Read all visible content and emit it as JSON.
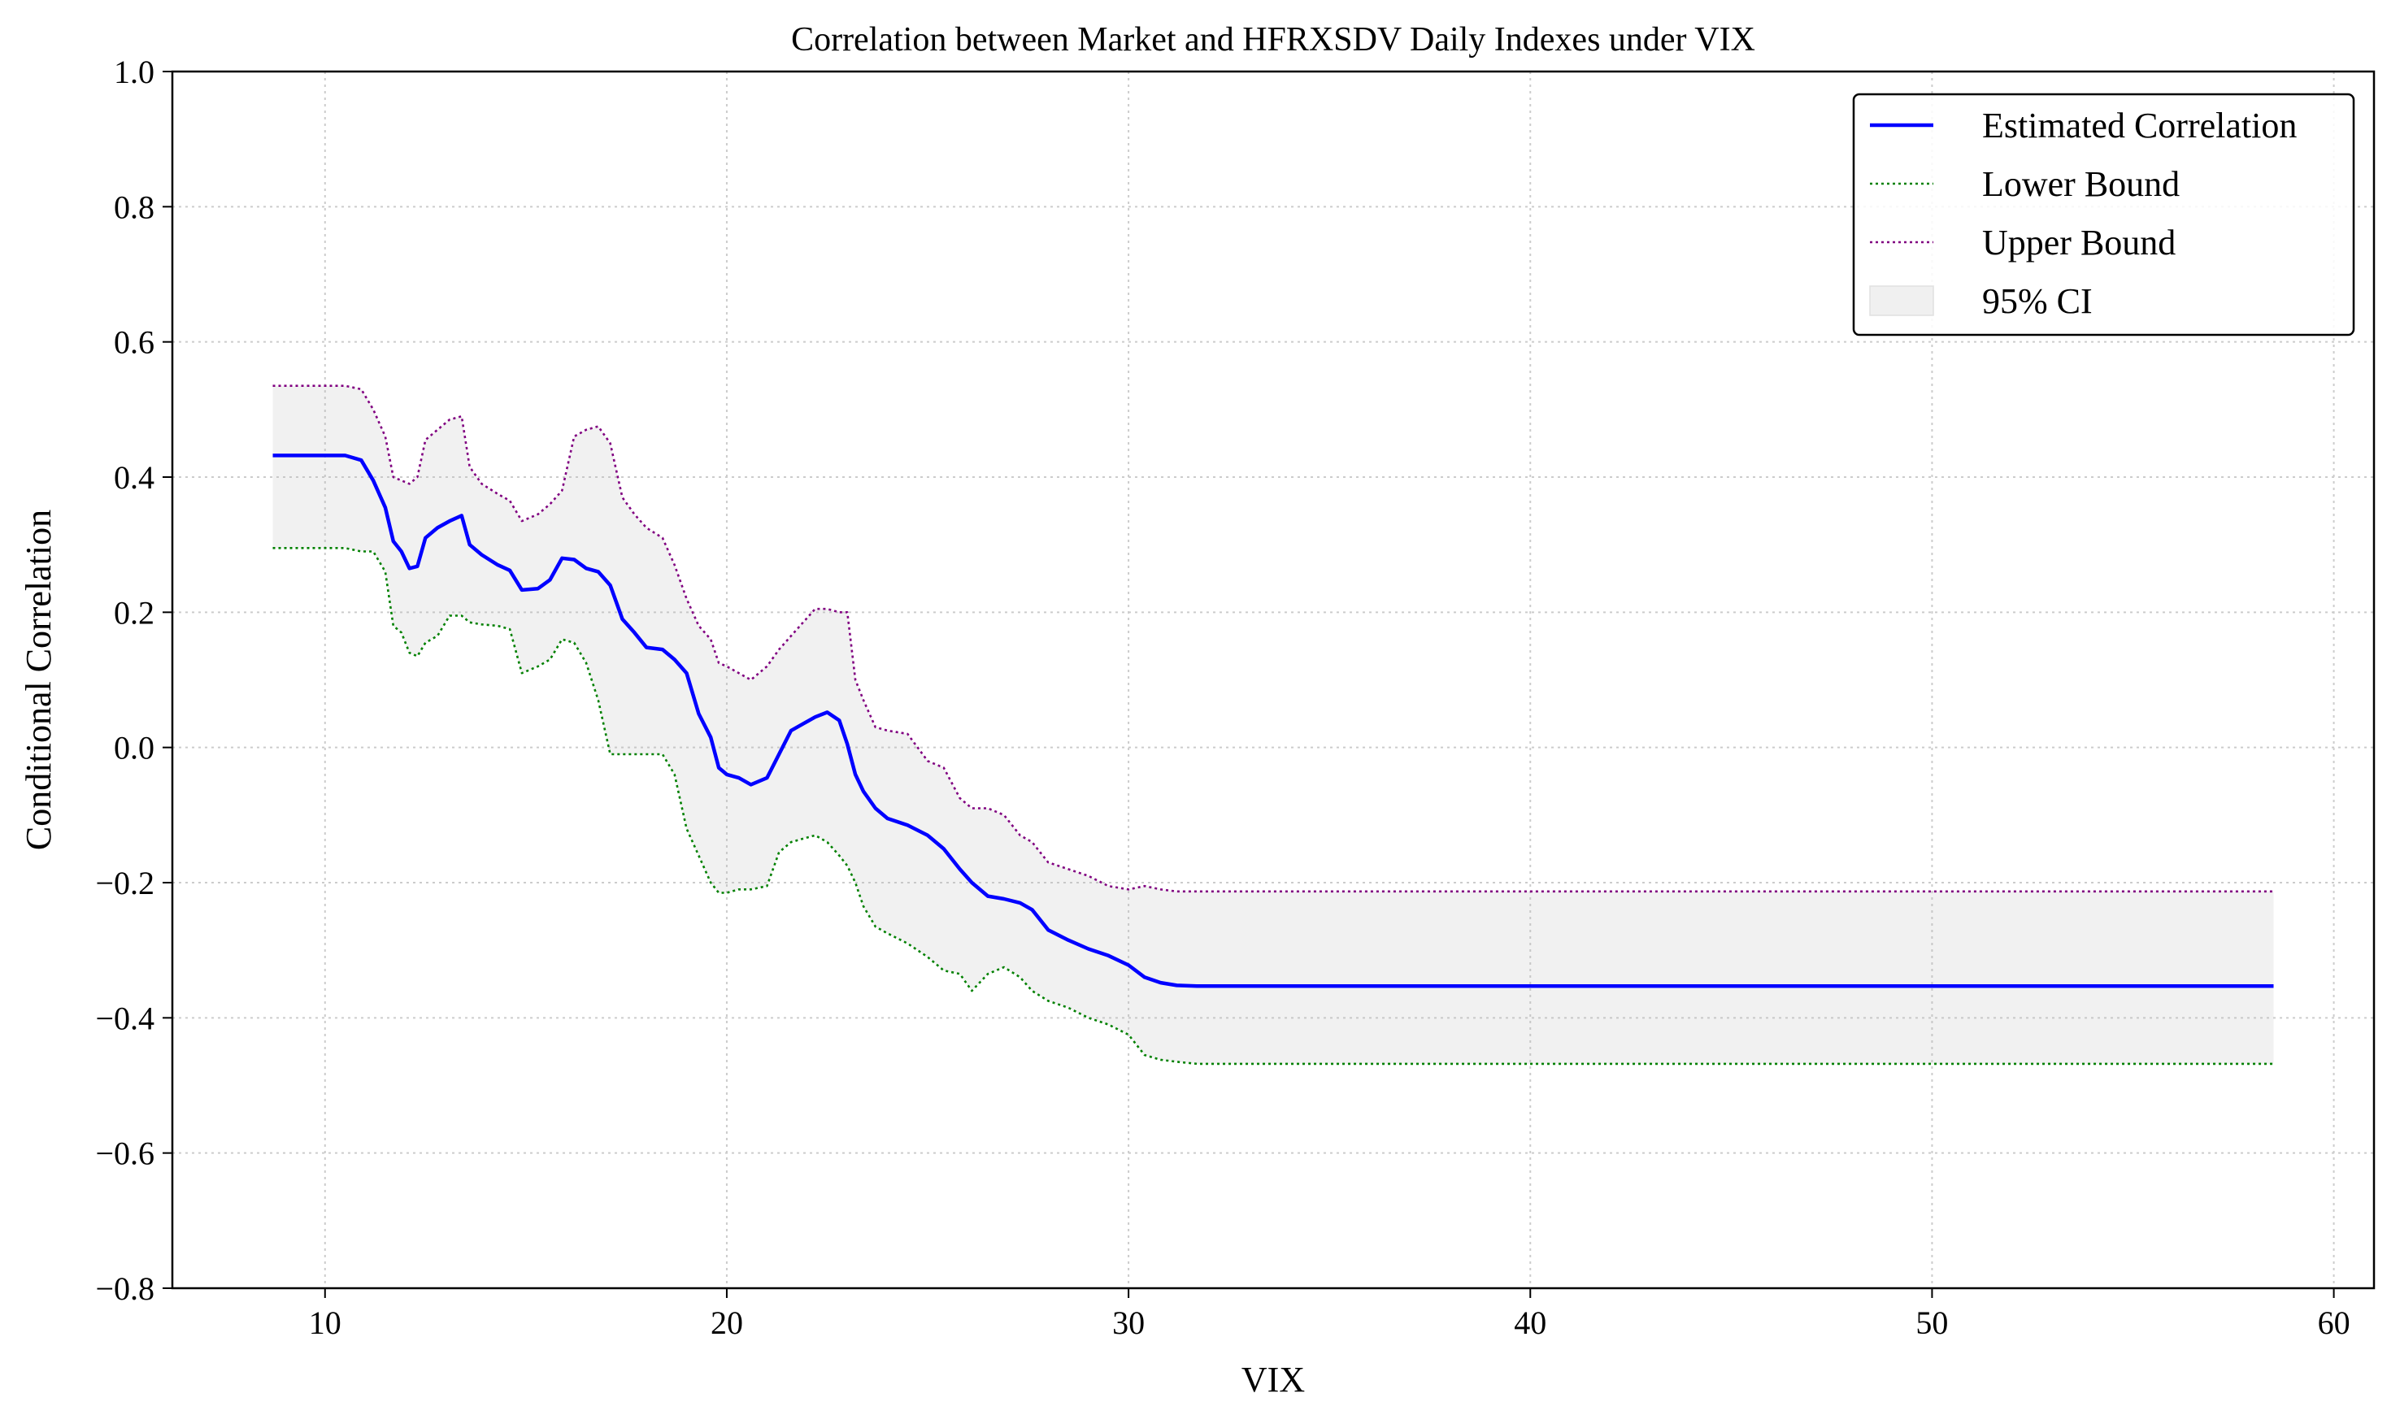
{
  "chart_data": {
    "type": "line",
    "title": "Correlation between Market and HFRXSDV Daily Indexes under VIX",
    "xlabel": "VIX",
    "ylabel": "Conditional Correlation",
    "xlim": [
      6.2,
      61.0
    ],
    "ylim": [
      -0.8,
      1.0
    ],
    "xticks": [
      10,
      20,
      30,
      40,
      50,
      60
    ],
    "yticks": [
      -0.8,
      -0.6,
      -0.4,
      -0.2,
      0.0,
      0.2,
      0.4,
      0.6,
      0.8,
      1.0
    ],
    "xtick_labels": [
      "10",
      "20",
      "30",
      "40",
      "50",
      "60"
    ],
    "ytick_labels": [
      "−0.8",
      "−0.6",
      "−0.4",
      "−0.2",
      "0.0",
      "0.2",
      "0.4",
      "0.6",
      "0.8",
      "1.0"
    ],
    "grid": true,
    "legend_position": "top-right",
    "x": [
      8.7,
      9.5,
      10.5,
      10.9,
      11.2,
      11.5,
      11.7,
      11.9,
      12.1,
      12.3,
      12.5,
      12.8,
      13.1,
      13.4,
      13.6,
      13.9,
      14.3,
      14.6,
      14.9,
      15.3,
      15.6,
      15.9,
      16.2,
      16.5,
      16.8,
      17.1,
      17.4,
      17.7,
      18.0,
      18.4,
      18.7,
      19.0,
      19.3,
      19.6,
      19.8,
      20.0,
      20.3,
      20.6,
      21.0,
      21.3,
      21.6,
      21.9,
      22.2,
      22.5,
      22.8,
      23.0,
      23.2,
      23.4,
      23.7,
      24.0,
      24.5,
      25.0,
      25.4,
      25.8,
      26.1,
      26.5,
      26.9,
      27.3,
      27.6,
      28.0,
      28.5,
      29.0,
      29.5,
      30.0,
      30.4,
      30.8,
      31.2,
      31.7,
      35.0,
      40.0,
      45.0,
      50.0,
      55.0,
      58.5
    ],
    "series": [
      {
        "name": "Estimated Correlation",
        "color": "#0000ff",
        "style": "solid",
        "values": [
          0.432,
          0.432,
          0.432,
          0.425,
          0.395,
          0.355,
          0.305,
          0.29,
          0.265,
          0.268,
          0.31,
          0.325,
          0.335,
          0.343,
          0.3,
          0.285,
          0.27,
          0.262,
          0.233,
          0.235,
          0.248,
          0.28,
          0.278,
          0.265,
          0.26,
          0.24,
          0.19,
          0.17,
          0.148,
          0.145,
          0.13,
          0.11,
          0.05,
          0.015,
          -0.03,
          -0.04,
          -0.045,
          -0.055,
          -0.045,
          -0.01,
          0.025,
          0.035,
          0.045,
          0.052,
          0.04,
          0.005,
          -0.04,
          -0.065,
          -0.09,
          -0.105,
          -0.115,
          -0.13,
          -0.15,
          -0.18,
          -0.2,
          -0.22,
          -0.224,
          -0.23,
          -0.24,
          -0.27,
          -0.285,
          -0.298,
          -0.308,
          -0.322,
          -0.34,
          -0.348,
          -0.352,
          -0.353,
          -0.353,
          -0.353,
          -0.353,
          -0.353,
          -0.353,
          -0.353
        ]
      },
      {
        "name": "Lower Bound",
        "color": "#008000",
        "style": "dotted",
        "values": [
          0.295,
          0.295,
          0.295,
          0.29,
          0.29,
          0.26,
          0.18,
          0.17,
          0.14,
          0.135,
          0.155,
          0.165,
          0.195,
          0.195,
          0.185,
          0.182,
          0.18,
          0.175,
          0.11,
          0.12,
          0.13,
          0.16,
          0.155,
          0.125,
          0.07,
          -0.01,
          -0.01,
          -0.01,
          -0.01,
          -0.01,
          -0.04,
          -0.12,
          -0.16,
          -0.2,
          -0.215,
          -0.215,
          -0.21,
          -0.21,
          -0.205,
          -0.155,
          -0.14,
          -0.135,
          -0.13,
          -0.14,
          -0.16,
          -0.175,
          -0.2,
          -0.235,
          -0.265,
          -0.275,
          -0.29,
          -0.31,
          -0.33,
          -0.335,
          -0.36,
          -0.335,
          -0.325,
          -0.34,
          -0.36,
          -0.375,
          -0.385,
          -0.4,
          -0.41,
          -0.425,
          -0.455,
          -0.462,
          -0.465,
          -0.468,
          -0.468,
          -0.468,
          -0.468,
          -0.468,
          -0.468,
          -0.468
        ]
      },
      {
        "name": "Upper Bound",
        "color": "#800080",
        "style": "dotted",
        "values": [
          0.535,
          0.535,
          0.535,
          0.53,
          0.5,
          0.46,
          0.4,
          0.395,
          0.39,
          0.4,
          0.455,
          0.47,
          0.485,
          0.49,
          0.415,
          0.39,
          0.375,
          0.365,
          0.335,
          0.345,
          0.36,
          0.38,
          0.46,
          0.47,
          0.475,
          0.45,
          0.37,
          0.345,
          0.325,
          0.31,
          0.27,
          0.22,
          0.18,
          0.16,
          0.125,
          0.12,
          0.11,
          0.1,
          0.12,
          0.145,
          0.165,
          0.185,
          0.205,
          0.205,
          0.2,
          0.2,
          0.1,
          0.07,
          0.03,
          0.025,
          0.02,
          -0.02,
          -0.03,
          -0.075,
          -0.09,
          -0.09,
          -0.1,
          -0.13,
          -0.14,
          -0.17,
          -0.18,
          -0.19,
          -0.205,
          -0.21,
          -0.205,
          -0.21,
          -0.213,
          -0.213,
          -0.213,
          -0.213,
          -0.213,
          -0.213,
          -0.213,
          -0.213
        ]
      }
    ],
    "band": {
      "name": "95% CI",
      "color": "#bbbbbb",
      "opacity": 0.2
    },
    "legend": {
      "entries": [
        {
          "label": "Estimated Correlation",
          "color": "#0000ff",
          "style": "solid"
        },
        {
          "label": "Lower Bound",
          "color": "#008000",
          "style": "dotted"
        },
        {
          "label": "Upper Bound",
          "color": "#800080",
          "style": "dotted"
        },
        {
          "label": "95% CI",
          "color": "#f0f0f0",
          "style": "patch"
        }
      ]
    }
  }
}
